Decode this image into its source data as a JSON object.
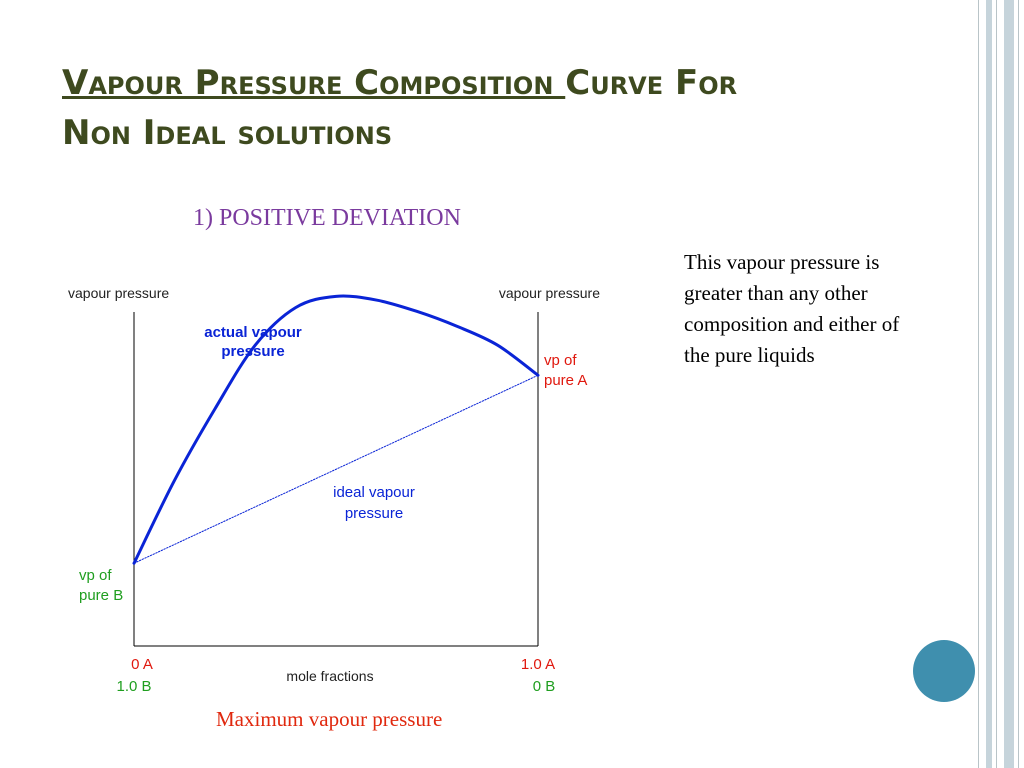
{
  "title": {
    "part1": "Vapour Pressure Composition ",
    "part2": "Curve For",
    "part3": "Non Ideal solutions"
  },
  "subtitle": "1) POSITIVE DEVIATION",
  "note": "This vapour pressure is greater than any other composition and either of the pure liquids",
  "caption": "Maximum vapour pressure",
  "colors": {
    "title": "#3e4a1f",
    "subtitle": "#7a3a9e",
    "caption": "#e0280e",
    "curve": "#0a24d6",
    "green_label": "#1f9e1f",
    "red_label": "#e0180e",
    "accent_circle": "#3f8fae"
  },
  "chart_data": {
    "type": "line",
    "left_axis_label": "vapour pressure",
    "right_axis_label": "vapour pressure",
    "xlabel": "mole fractions",
    "x_ticks": [
      {
        "top": "0 A",
        "bottom": "1.0 B"
      },
      {
        "top": "1.0 A",
        "bottom": "0 B"
      }
    ],
    "series": [
      {
        "name": "actual vapour pressure",
        "label_lines": [
          "actual vapour",
          "pressure"
        ],
        "style": "thick solid",
        "x": [
          0.0,
          0.1,
          0.2,
          0.3,
          0.4,
          0.5,
          0.6,
          0.7,
          0.8,
          0.9,
          1.0
        ],
        "y": [
          0.22,
          0.44,
          0.63,
          0.8,
          0.9,
          0.93,
          0.92,
          0.89,
          0.85,
          0.8,
          0.72
        ]
      },
      {
        "name": "ideal vapour pressure",
        "label_lines": [
          "ideal vapour",
          "pressure"
        ],
        "style": "thin dotted",
        "x": [
          0.0,
          1.0
        ],
        "y": [
          0.22,
          0.72
        ]
      }
    ],
    "annotations": [
      {
        "lines": [
          "vp of",
          "pure B"
        ],
        "color": "green"
      },
      {
        "lines": [
          "vp of",
          "pure A"
        ],
        "color": "red"
      }
    ],
    "ylim": [
      0,
      1
    ],
    "xlim": [
      0,
      1
    ],
    "grid": false
  }
}
